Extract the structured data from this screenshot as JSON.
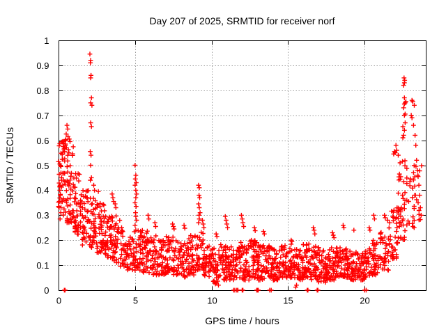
{
  "chart_data": {
    "type": "scatter",
    "title": "Day 207 of 2025, SRMTID for receiver norf",
    "xlabel": "GPS time / hours",
    "ylabel": "SRMTID / TECUs",
    "xlim": [
      0,
      24
    ],
    "ylim": [
      0,
      1
    ],
    "xticks": [
      0,
      5,
      10,
      15,
      20
    ],
    "yticks": [
      0,
      0.1,
      0.2,
      0.3,
      0.4,
      0.5,
      0.6,
      0.7,
      0.8,
      0.9,
      1
    ],
    "grid": true,
    "legend": "none",
    "marker": "plus",
    "marker_color": "#ff0000",
    "grid_color": "#9a9a9a",
    "axis_color": "#000000",
    "background_color": "#ffffff",
    "feature_points": [
      [
        0.55,
        0.66
      ],
      [
        0.6,
        0.645
      ],
      [
        0.5,
        0.625
      ],
      [
        0.62,
        0.615
      ],
      [
        0.7,
        0.605
      ],
      [
        0.75,
        0.595
      ],
      [
        0.45,
        0.585
      ],
      [
        0.3,
        0.575
      ],
      [
        0.35,
        0.565
      ],
      [
        0.4,
        0.555
      ],
      [
        0.25,
        0.545
      ],
      [
        0.2,
        0.44
      ],
      [
        0.1,
        0.42
      ],
      [
        0.08,
        0.4
      ],
      [
        0.12,
        0.38
      ],
      [
        0.05,
        0.355
      ],
      [
        0.15,
        0.31
      ],
      [
        0.1,
        0.285
      ],
      [
        2.05,
        0.945
      ],
      [
        2.1,
        0.92
      ],
      [
        2.08,
        0.91
      ],
      [
        2.12,
        0.86
      ],
      [
        2.1,
        0.85
      ],
      [
        2.15,
        0.77
      ],
      [
        2.1,
        0.75
      ],
      [
        2.18,
        0.74
      ],
      [
        2.1,
        0.67
      ],
      [
        2.15,
        0.655
      ],
      [
        2.07,
        0.555
      ],
      [
        2.12,
        0.54
      ],
      [
        2.1,
        0.5
      ],
      [
        2.15,
        0.45
      ],
      [
        2.08,
        0.44
      ],
      [
        2.3,
        0.42
      ],
      [
        2.35,
        0.4
      ],
      [
        2.6,
        0.395
      ],
      [
        3.5,
        0.385
      ],
      [
        3.55,
        0.37
      ],
      [
        3.6,
        0.355
      ],
      [
        3.7,
        0.345
      ],
      [
        3.75,
        0.33
      ],
      [
        5.0,
        0.5
      ],
      [
        5.05,
        0.46
      ],
      [
        5.02,
        0.445
      ],
      [
        5.08,
        0.43
      ],
      [
        5.0,
        0.42
      ],
      [
        5.05,
        0.4
      ],
      [
        5.1,
        0.385
      ],
      [
        5.05,
        0.37
      ],
      [
        5.0,
        0.35
      ],
      [
        5.07,
        0.335
      ],
      [
        5.03,
        0.31
      ],
      [
        5.05,
        0.295
      ],
      [
        5.1,
        0.28
      ],
      [
        5.0,
        0.26
      ],
      [
        5.05,
        0.24
      ],
      [
        5.85,
        0.3
      ],
      [
        5.9,
        0.285
      ],
      [
        6.3,
        0.27
      ],
      [
        6.35,
        0.255
      ],
      [
        7.45,
        0.265
      ],
      [
        7.5,
        0.255
      ],
      [
        7.55,
        0.245
      ],
      [
        8.2,
        0.26
      ],
      [
        8.25,
        0.248
      ],
      [
        9.15,
        0.42
      ],
      [
        9.2,
        0.41
      ],
      [
        9.18,
        0.38
      ],
      [
        9.22,
        0.37
      ],
      [
        9.15,
        0.345
      ],
      [
        9.2,
        0.33
      ],
      [
        9.25,
        0.31
      ],
      [
        9.18,
        0.3
      ],
      [
        9.2,
        0.285
      ],
      [
        9.15,
        0.27
      ],
      [
        9.4,
        0.28
      ],
      [
        9.45,
        0.265
      ],
      [
        9.5,
        0.25
      ],
      [
        10.3,
        0.225
      ],
      [
        10.35,
        0.215
      ],
      [
        10.9,
        0.295
      ],
      [
        10.95,
        0.28
      ],
      [
        11.0,
        0.265
      ],
      [
        11.05,
        0.25
      ],
      [
        11.95,
        0.3
      ],
      [
        12.0,
        0.285
      ],
      [
        12.05,
        0.27
      ],
      [
        12.1,
        0.255
      ],
      [
        12.8,
        0.25
      ],
      [
        12.85,
        0.238
      ],
      [
        13.4,
        0.235
      ],
      [
        13.45,
        0.225
      ],
      [
        15.2,
        0.2
      ],
      [
        15.25,
        0.195
      ],
      [
        16.65,
        0.25
      ],
      [
        16.7,
        0.24
      ],
      [
        16.75,
        0.225
      ],
      [
        17.9,
        0.23
      ],
      [
        17.95,
        0.22
      ],
      [
        18.0,
        0.21
      ],
      [
        18.6,
        0.26
      ],
      [
        18.65,
        0.25
      ],
      [
        19.3,
        0.24
      ],
      [
        20.3,
        0.25
      ],
      [
        20.35,
        0.24
      ],
      [
        20.6,
        0.3
      ],
      [
        20.65,
        0.285
      ],
      [
        21.3,
        0.3
      ],
      [
        21.35,
        0.29
      ],
      [
        21.5,
        0.28
      ],
      [
        21.9,
        0.545
      ],
      [
        21.95,
        0.555
      ],
      [
        22.0,
        0.55
      ],
      [
        22.1,
        0.56
      ],
      [
        22.05,
        0.58
      ],
      [
        22.2,
        0.54
      ],
      [
        22.5,
        0.61
      ],
      [
        22.55,
        0.62
      ],
      [
        22.6,
        0.64
      ],
      [
        22.5,
        0.655
      ],
      [
        22.65,
        0.67
      ],
      [
        22.6,
        0.7
      ],
      [
        22.65,
        0.705
      ],
      [
        22.55,
        0.73
      ],
      [
        22.6,
        0.745
      ],
      [
        22.65,
        0.75
      ],
      [
        22.7,
        0.755
      ],
      [
        22.6,
        0.77
      ],
      [
        22.55,
        0.82
      ],
      [
        22.6,
        0.83
      ],
      [
        22.62,
        0.84
      ],
      [
        22.58,
        0.85
      ],
      [
        23.1,
        0.76
      ],
      [
        23.15,
        0.755
      ],
      [
        23.25,
        0.74
      ],
      [
        23.05,
        0.7
      ],
      [
        23.1,
        0.69
      ],
      [
        23.2,
        0.66
      ],
      [
        23.3,
        0.62
      ],
      [
        23.35,
        0.58
      ],
      [
        23.4,
        0.52
      ],
      [
        23.45,
        0.48
      ],
      [
        23.5,
        0.455
      ],
      [
        23.55,
        0.42
      ],
      [
        23.6,
        0.38
      ],
      [
        23.5,
        0.35
      ],
      [
        23.65,
        0.33
      ],
      [
        23.7,
        0.3
      ],
      [
        10.25,
        0.025
      ],
      [
        10.3,
        0.03
      ],
      [
        10.45,
        0.02
      ],
      [
        15.5,
        0.012
      ],
      [
        15.55,
        0.02
      ]
    ],
    "zero_points": [
      [
        0.38,
        0
      ],
      [
        0.43,
        0
      ],
      [
        11.45,
        0
      ],
      [
        11.52,
        0
      ],
      [
        11.65,
        0
      ],
      [
        11.72,
        0
      ],
      [
        12.0,
        0
      ],
      [
        12.05,
        0
      ],
      [
        12.95,
        0
      ],
      [
        13.0,
        0
      ],
      [
        13.05,
        0
      ],
      [
        13.8,
        0
      ],
      [
        13.9,
        0
      ],
      [
        16.25,
        0
      ],
      [
        16.3,
        0
      ],
      [
        16.9,
        0
      ],
      [
        16.95,
        0
      ],
      [
        20.0,
        0
      ],
      [
        20.1,
        0
      ]
    ],
    "density_bands": [
      [
        0.0,
        0.5,
        0.3,
        0.62,
        50
      ],
      [
        0.5,
        1.0,
        0.27,
        0.58,
        50
      ],
      [
        1.0,
        1.5,
        0.22,
        0.48,
        42
      ],
      [
        1.5,
        2.0,
        0.18,
        0.4,
        38
      ],
      [
        2.0,
        2.5,
        0.17,
        0.38,
        38
      ],
      [
        2.5,
        3.0,
        0.15,
        0.35,
        40
      ],
      [
        3.0,
        3.5,
        0.13,
        0.32,
        40
      ],
      [
        3.5,
        4.0,
        0.11,
        0.3,
        38
      ],
      [
        4.0,
        4.5,
        0.09,
        0.27,
        36
      ],
      [
        4.5,
        5.0,
        0.08,
        0.24,
        34
      ],
      [
        5.0,
        5.5,
        0.08,
        0.25,
        36
      ],
      [
        5.5,
        6.0,
        0.07,
        0.24,
        36
      ],
      [
        6.0,
        6.5,
        0.06,
        0.22,
        36
      ],
      [
        6.5,
        7.0,
        0.06,
        0.2,
        36
      ],
      [
        7.0,
        7.5,
        0.07,
        0.22,
        36
      ],
      [
        7.5,
        8.0,
        0.06,
        0.2,
        34
      ],
      [
        8.0,
        8.5,
        0.05,
        0.19,
        34
      ],
      [
        8.5,
        9.0,
        0.06,
        0.22,
        36
      ],
      [
        9.0,
        9.5,
        0.08,
        0.24,
        36
      ],
      [
        9.5,
        10.0,
        0.05,
        0.18,
        36
      ],
      [
        10.0,
        10.5,
        0.03,
        0.17,
        36
      ],
      [
        10.5,
        11.0,
        0.04,
        0.19,
        38
      ],
      [
        11.0,
        11.5,
        0.04,
        0.18,
        38
      ],
      [
        11.5,
        12.0,
        0.05,
        0.2,
        38
      ],
      [
        12.0,
        12.5,
        0.04,
        0.19,
        40
      ],
      [
        12.5,
        13.0,
        0.05,
        0.2,
        40
      ],
      [
        13.0,
        13.5,
        0.04,
        0.18,
        40
      ],
      [
        13.5,
        14.0,
        0.05,
        0.19,
        40
      ],
      [
        14.0,
        14.5,
        0.04,
        0.17,
        38
      ],
      [
        14.5,
        15.0,
        0.05,
        0.18,
        38
      ],
      [
        15.0,
        15.5,
        0.05,
        0.19,
        38
      ],
      [
        15.5,
        16.0,
        0.04,
        0.17,
        38
      ],
      [
        16.0,
        16.5,
        0.05,
        0.19,
        40
      ],
      [
        16.5,
        17.0,
        0.04,
        0.18,
        40
      ],
      [
        17.0,
        17.5,
        0.03,
        0.16,
        38
      ],
      [
        17.5,
        18.0,
        0.04,
        0.17,
        38
      ],
      [
        18.0,
        18.5,
        0.05,
        0.18,
        40
      ],
      [
        18.5,
        19.0,
        0.05,
        0.17,
        40
      ],
      [
        19.0,
        19.5,
        0.04,
        0.16,
        38
      ],
      [
        19.5,
        20.0,
        0.04,
        0.15,
        36
      ],
      [
        20.0,
        20.5,
        0.05,
        0.17,
        34
      ],
      [
        20.5,
        21.0,
        0.06,
        0.2,
        34
      ],
      [
        21.0,
        21.6,
        0.08,
        0.24,
        36
      ],
      [
        21.6,
        22.2,
        0.12,
        0.35,
        38
      ],
      [
        22.2,
        22.7,
        0.2,
        0.52,
        40
      ],
      [
        22.7,
        23.3,
        0.25,
        0.5,
        26
      ],
      [
        23.3,
        23.75,
        0.28,
        0.5,
        10
      ]
    ]
  }
}
